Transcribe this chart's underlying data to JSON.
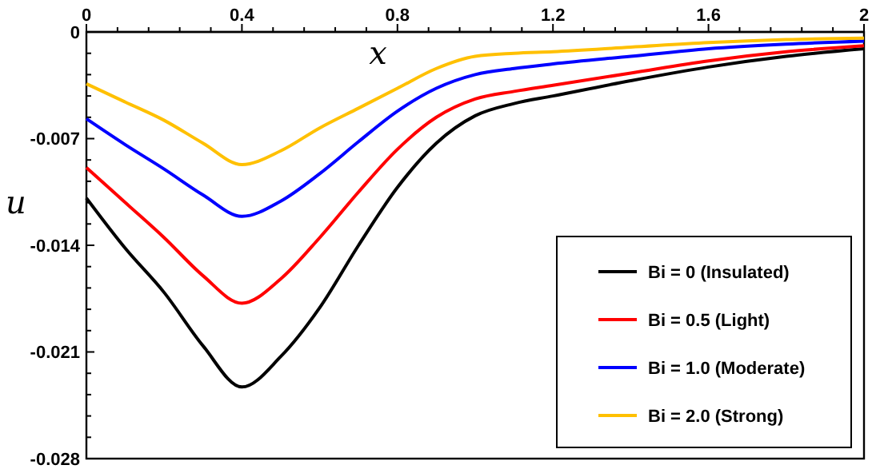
{
  "chart_data": {
    "type": "line",
    "xlabel": "x",
    "ylabel": "u",
    "x": [
      0,
      0.1,
      0.2,
      0.3,
      0.4,
      0.5,
      0.6,
      0.7,
      0.8,
      0.9,
      1.0,
      1.1,
      1.2,
      1.4,
      1.6,
      1.8,
      2.0
    ],
    "series": [
      {
        "name": "Bi = 0 (Insulated)",
        "color": "#000000",
        "values": [
          -0.0109,
          -0.0142,
          -0.0171,
          -0.0206,
          -0.0233,
          -0.0213,
          -0.0181,
          -0.014,
          -0.0102,
          -0.0073,
          -0.0055,
          -0.0047,
          -0.0042,
          -0.0032,
          -0.0023,
          -0.0016,
          -0.0011
        ]
      },
      {
        "name": "Bi = 0.5 (Light)",
        "color": "#ff0000",
        "values": [
          -0.0089,
          -0.0112,
          -0.0135,
          -0.016,
          -0.0178,
          -0.0162,
          -0.0135,
          -0.0105,
          -0.0077,
          -0.0056,
          -0.0044,
          -0.0039,
          -0.0035,
          -0.0027,
          -0.0019,
          -0.0013,
          -0.0009
        ]
      },
      {
        "name": "Bi = 1.0 (Moderate)",
        "color": "#0000ff",
        "values": [
          -0.0057,
          -0.0074,
          -0.009,
          -0.0107,
          -0.0121,
          -0.0111,
          -0.0093,
          -0.0072,
          -0.0052,
          -0.0037,
          -0.0028,
          -0.0024,
          -0.0021,
          -0.0016,
          -0.0011,
          -0.0008,
          -0.0006
        ]
      },
      {
        "name": "Bi = 2.0 (Strong)",
        "color": "#ffc000",
        "values": [
          -0.0034,
          -0.0046,
          -0.0058,
          -0.0073,
          -0.0087,
          -0.0078,
          -0.0063,
          -0.005,
          -0.0037,
          -0.0024,
          -0.0016,
          -0.0014,
          -0.0013,
          -0.001,
          -0.0007,
          -0.0005,
          -0.0004
        ]
      }
    ],
    "xlim": [
      0,
      2
    ],
    "xticks": [
      0,
      {
        "value": 0.08,
        "label": null
      },
      {
        "value": 0.16,
        "label": null
      },
      {
        "value": 0.24,
        "label": null
      },
      {
        "value": 0.32,
        "label": null
      },
      0.4,
      {
        "value": 0.48,
        "label": null
      },
      {
        "value": 0.56,
        "label": null
      },
      {
        "value": 0.64,
        "label": null
      },
      {
        "value": 0.72,
        "label": null
      },
      0.8,
      {
        "value": 0.88,
        "label": null
      },
      {
        "value": 0.96,
        "label": null
      },
      {
        "value": 1.04,
        "label": null
      },
      {
        "value": 1.12,
        "label": null
      },
      1.2,
      {
        "value": 1.28,
        "label": null
      },
      {
        "value": 1.36,
        "label": null
      },
      {
        "value": 1.44,
        "label": null
      },
      {
        "value": 1.52,
        "label": null
      },
      1.6,
      {
        "value": 1.68,
        "label": null
      },
      {
        "value": 1.76,
        "label": null
      },
      {
        "value": 1.84,
        "label": null
      },
      {
        "value": 1.92,
        "label": null
      },
      2
    ],
    "ylim": [
      -0.028,
      0
    ],
    "yticks": [
      0,
      {
        "value": -0.0014,
        "label": null
      },
      {
        "value": -0.0028,
        "label": null
      },
      {
        "value": -0.0042,
        "label": null
      },
      {
        "value": -0.0056,
        "label": null
      },
      -0.007,
      {
        "value": -0.0084,
        "label": null
      },
      {
        "value": -0.0098,
        "label": null
      },
      {
        "value": -0.0112,
        "label": null
      },
      {
        "value": -0.0126,
        "label": null
      },
      -0.014,
      {
        "value": -0.0154,
        "label": null
      },
      {
        "value": -0.0168,
        "label": null
      },
      {
        "value": -0.0182,
        "label": null
      },
      {
        "value": -0.0196,
        "label": null
      },
      -0.021,
      {
        "value": -0.0224,
        "label": null
      },
      {
        "value": -0.0238,
        "label": null
      },
      {
        "value": -0.0252,
        "label": null
      },
      {
        "value": -0.0266,
        "label": null
      },
      -0.028
    ],
    "grid": false,
    "legend": "bottom right",
    "marker": "none",
    "line_style": "solid"
  }
}
